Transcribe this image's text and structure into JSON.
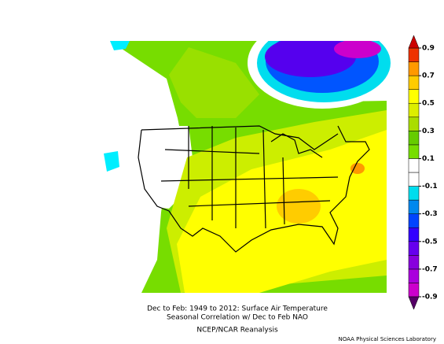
{
  "caption": {
    "lines": [
      "Dec to Feb: 1949 to 2012: Surface Air Temperature",
      "Seasonal Correlation w/ Dec to Feb NAO",
      "NCEP/NCAR Reanalysis"
    ],
    "credit": "NOAA Physical Sciences Laboratory"
  },
  "colorbar": {
    "range": [
      -0.9,
      0.9
    ],
    "ticks": [
      0.9,
      0.7,
      0.5,
      0.3,
      0.1,
      -0.1,
      -0.3,
      -0.5,
      -0.7,
      -0.9
    ],
    "colors": [
      "#cc00cc",
      "#aa00dd",
      "#8800dd",
      "#6600ee",
      "#3300ff",
      "#0044ff",
      "#0088ee",
      "#00ddee",
      "#ffffff",
      "#ffffff",
      "#77dd00",
      "#66cc00",
      "#aadd00",
      "#ddee00",
      "#ffff00",
      "#ffcc00",
      "#ff9900",
      "#ee3300"
    ],
    "under": "#550066",
    "over": "#cc0000"
  }
}
